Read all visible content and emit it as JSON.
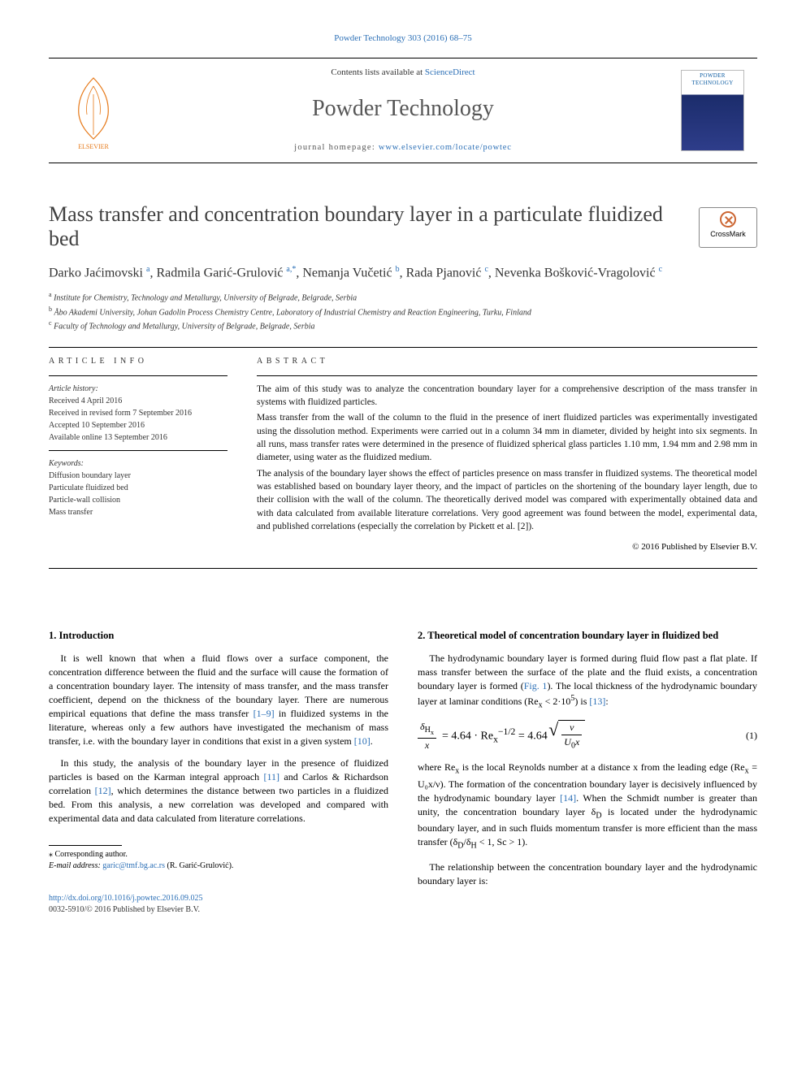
{
  "topbar": "Powder Technology 303 (2016) 68–75",
  "masthead": {
    "contents_prefix": "Contents lists available at ",
    "contents_link": "ScienceDirect",
    "journal": "Powder Technology",
    "homepage_prefix": "journal homepage: ",
    "homepage_url": "www.elsevier.com/locate/powtec",
    "cover_label": "POWDER TECHNOLOGY"
  },
  "crossmark_label": "CrossMark",
  "title": "Mass transfer and concentration boundary layer in a particulate fluidized bed",
  "authors_html": "Darko Jaćimovski <sup>a</sup>, Radmila Garić-Grulović <sup>a,*</sup>, Nemanja Vučetić <sup>b</sup>, Rada Pjanović <sup>c</sup>, Nevenka Bošković-Vragolović <sup>c</sup>",
  "affiliations": [
    {
      "key": "a",
      "text": "Institute for Chemistry, Technology and Metallurgy, University of Belgrade, Belgrade, Serbia"
    },
    {
      "key": "b",
      "text": "Åbo Akademi University, Johan Gadolin Process Chemistry Centre, Laboratory of Industrial Chemistry and Reaction Engineering, Turku, Finland"
    },
    {
      "key": "c",
      "text": "Faculty of Technology and Metallurgy, University of Belgrade, Belgrade, Serbia"
    }
  ],
  "info": {
    "heading": "article info",
    "history_label": "Article history:",
    "history": [
      "Received 4 April 2016",
      "Received in revised form 7 September 2016",
      "Accepted 10 September 2016",
      "Available online 13 September 2016"
    ],
    "keywords_label": "Keywords:",
    "keywords": [
      "Diffusion boundary layer",
      "Particulate fluidized bed",
      "Particle-wall collision",
      "Mass transfer"
    ]
  },
  "abstract": {
    "heading": "abstract",
    "paragraphs": [
      "The aim of this study was to analyze the concentration boundary layer for a comprehensive description of the mass transfer in systems with fluidized particles.",
      "Mass transfer from the wall of the column to the fluid in the presence of inert fluidized particles was experimentally investigated using the dissolution method. Experiments were carried out in a column 34 mm in diameter, divided by height into six segments. In all runs, mass transfer rates were determined in the presence of fluidized spherical glass particles 1.10 mm, 1.94 mm and 2.98 mm in diameter, using water as the fluidized medium.",
      "The analysis of the boundary layer shows the effect of particles presence on mass transfer in fluidized systems. The theoretical model was established based on boundary layer theory, and the impact of particles on the shortening of the boundary layer length, due to their collision with the wall of the column. The theoretically derived model was compared with experimentally obtained data and with data calculated from available literature correlations. Very good agreement was found between the model, experimental data, and published correlations (especially the correlation by Pickett et al. [2])."
    ],
    "copyright": "© 2016 Published by Elsevier B.V."
  },
  "body": {
    "left": {
      "heading": "1. Introduction",
      "p1a": "It is well known that when a fluid flows over a surface component, the concentration difference between the fluid and the surface will cause the formation of a concentration boundary layer. The intensity of mass transfer, and the mass transfer coefficient, depend on the thickness of the boundary layer. There are numerous empirical equations that define the mass transfer ",
      "p1_ref1": "[1–9]",
      "p1b": " in fluidized systems in the literature, whereas only a few authors have investigated the mechanism of mass transfer, i.e. with the boundary layer in conditions that exist in a given system ",
      "p1_ref2": "[10]",
      "p1c": ".",
      "p2a": "In this study, the analysis of the boundary layer in the presence of fluidized particles is based on the Karman integral approach ",
      "p2_ref1": "[11]",
      "p2b": " and Carlos & Richardson correlation ",
      "p2_ref2": "[12]",
      "p2c": ", which determines the distance between two particles in a fluidized bed. From this analysis, a new correlation was developed and compared with experimental data and data calculated from literature correlations."
    },
    "right": {
      "heading": "2. Theoretical model of concentration boundary layer in fluidized bed",
      "p1a": "The hydrodynamic boundary layer is formed during fluid flow past a flat plate. If mass transfer between the surface of the plate and the fluid exists, a concentration boundary layer is formed (",
      "p1_fig": "Fig. 1",
      "p1b": "). The local thickness of the hydrodynamic boundary layer at laminar conditions (Re",
      "p1_sub": "x",
      "p1c": " < 2·10",
      "p1_sup": "5",
      "p1d": ") is ",
      "p1_ref": "[13]",
      "p1e": ":",
      "eq1_num": "(1)",
      "p2a": "where Re",
      "p2a_sub": "x",
      "p2b": " is the local Reynolds number at a distance x from the leading edge (Re",
      "p2b_sub": "x",
      "p2c": " = U₀x/ν). The formation of the concentration boundary layer is decisively influenced by the hydrodynamic boundary layer ",
      "p2_ref": "[14]",
      "p2d": ". When the Schmidt number is greater than unity, the concentration boundary layer δ",
      "p2d_sub": "D",
      "p2e": " is located under the hydrodynamic boundary layer, and in such fluids momentum transfer is more efficient than the mass transfer (δ",
      "p2e_sub1": "D",
      "p2f": "/δ",
      "p2f_sub2": "H",
      "p2g": " < 1, Sc > 1).",
      "p3": "The relationship between the concentration boundary layer and the hydrodynamic boundary layer is:"
    }
  },
  "footnotes": {
    "corr": "⁎ Corresponding author.",
    "email_label": "E-mail address: ",
    "email": "garic@tmf.bg.ac.rs",
    "email_who": " (R. Garić-Grulović)."
  },
  "doi": {
    "link": "http://dx.doi.org/10.1016/j.powtec.2016.09.025",
    "issn_line": "0032-5910/© 2016 Published by Elsevier B.V."
  },
  "colors": {
    "link": "#2b6fb6",
    "text": "#000000",
    "title_gray": "#404040",
    "journal_gray": "#565656"
  }
}
